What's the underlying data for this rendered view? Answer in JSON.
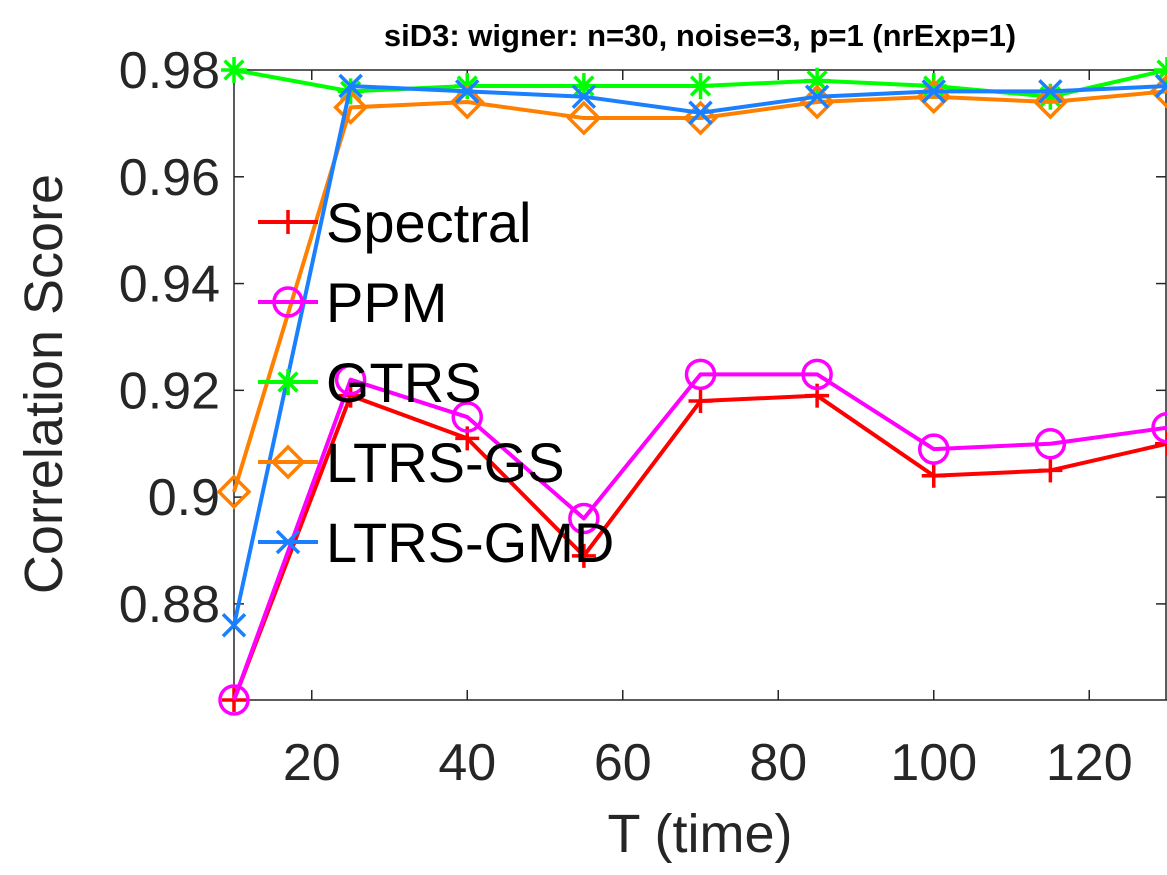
{
  "chart_data": {
    "type": "line",
    "title": "siD3: wigner: n=30, noise=3, p=1 (nrExp=1)",
    "xlabel": "T (time)",
    "ylabel": "Correlation Score",
    "xlim": [
      10,
      130
    ],
    "ylim": [
      0.862,
      0.98
    ],
    "xticks": [
      20,
      40,
      60,
      80,
      100,
      120
    ],
    "xtick_labels": [
      "20",
      "40",
      "60",
      "80",
      "100",
      "120"
    ],
    "yticks": [
      0.88,
      0.9,
      0.92,
      0.94,
      0.96,
      0.98
    ],
    "ytick_labels": [
      "0.88",
      "0.9",
      "0.92",
      "0.94",
      "0.96",
      "0.98"
    ],
    "grid": false,
    "legend_position": "center-left",
    "x": [
      10,
      25,
      40,
      55,
      70,
      85,
      100,
      115,
      130
    ],
    "series": [
      {
        "name": "Spectral",
        "color": "#ff0000",
        "marker": "plus",
        "values": [
          0.862,
          0.919,
          0.911,
          0.889,
          0.918,
          0.919,
          0.904,
          0.905,
          0.91
        ]
      },
      {
        "name": "PPM",
        "color": "#ff00ff",
        "marker": "circle",
        "values": [
          0.862,
          0.922,
          0.915,
          0.896,
          0.923,
          0.923,
          0.909,
          0.91,
          0.913
        ]
      },
      {
        "name": "GTRS",
        "color": "#00ff00",
        "marker": "asterisk",
        "values": [
          0.98,
          0.976,
          0.977,
          0.977,
          0.977,
          0.978,
          0.977,
          0.975,
          0.98
        ]
      },
      {
        "name": "LTRS-GS",
        "color": "#ff8000",
        "marker": "diamond",
        "values": [
          0.901,
          0.973,
          0.974,
          0.971,
          0.971,
          0.974,
          0.975,
          0.974,
          0.976
        ]
      },
      {
        "name": "LTRS-GMD",
        "color": "#1a80ff",
        "marker": "cross",
        "values": [
          0.876,
          0.977,
          0.976,
          0.975,
          0.972,
          0.975,
          0.976,
          0.976,
          0.977
        ]
      }
    ]
  }
}
